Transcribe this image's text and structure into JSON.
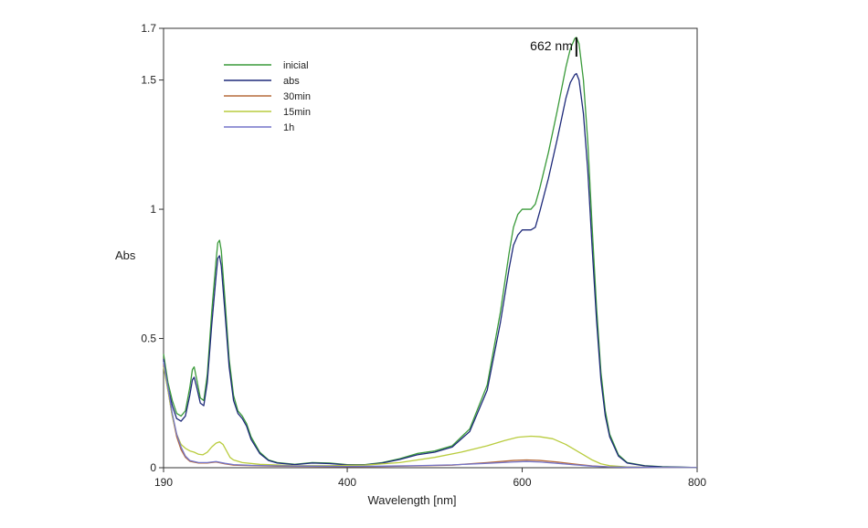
{
  "chart_data": {
    "type": "line",
    "xlabel": "Wavelength [nm]",
    "ylabel": "Abs",
    "xlim": [
      190,
      800
    ],
    "ylim": [
      0,
      1.7
    ],
    "x_ticks": [
      190,
      400,
      600,
      800
    ],
    "y_ticks": [
      0,
      0.5,
      1,
      1.5,
      1.7
    ],
    "x_tick_labels": [
      "190",
      "400",
      "600",
      "800"
    ],
    "y_tick_labels": [
      "0",
      "0.5",
      "1",
      "1.5",
      "1.7"
    ],
    "grid": false,
    "legend_placement": "top-left",
    "annotation": {
      "text": "662 nm",
      "x": 662,
      "y": 1.66
    },
    "series": [
      {
        "name": "inicial",
        "color": "#3a9a3a",
        "points": [
          [
            190,
            0.44
          ],
          [
            195,
            0.33
          ],
          [
            200,
            0.26
          ],
          [
            205,
            0.21
          ],
          [
            210,
            0.2
          ],
          [
            215,
            0.22
          ],
          [
            220,
            0.31
          ],
          [
            223,
            0.38
          ],
          [
            225,
            0.39
          ],
          [
            228,
            0.34
          ],
          [
            232,
            0.27
          ],
          [
            236,
            0.26
          ],
          [
            240,
            0.36
          ],
          [
            245,
            0.6
          ],
          [
            250,
            0.8
          ],
          [
            252,
            0.87
          ],
          [
            254,
            0.88
          ],
          [
            256,
            0.84
          ],
          [
            260,
            0.66
          ],
          [
            265,
            0.42
          ],
          [
            270,
            0.28
          ],
          [
            275,
            0.22
          ],
          [
            280,
            0.2
          ],
          [
            285,
            0.17
          ],
          [
            290,
            0.12
          ],
          [
            300,
            0.06
          ],
          [
            310,
            0.03
          ],
          [
            320,
            0.02
          ],
          [
            340,
            0.013
          ],
          [
            360,
            0.02
          ],
          [
            380,
            0.018
          ],
          [
            400,
            0.012
          ],
          [
            420,
            0.012
          ],
          [
            440,
            0.02
          ],
          [
            460,
            0.035
          ],
          [
            480,
            0.055
          ],
          [
            500,
            0.065
          ],
          [
            520,
            0.085
          ],
          [
            540,
            0.15
          ],
          [
            560,
            0.32
          ],
          [
            575,
            0.6
          ],
          [
            585,
            0.83
          ],
          [
            590,
            0.93
          ],
          [
            595,
            0.98
          ],
          [
            600,
            1.0
          ],
          [
            605,
            1.0
          ],
          [
            610,
            1.0
          ],
          [
            615,
            1.02
          ],
          [
            620,
            1.08
          ],
          [
            630,
            1.22
          ],
          [
            640,
            1.38
          ],
          [
            650,
            1.55
          ],
          [
            655,
            1.62
          ],
          [
            660,
            1.66
          ],
          [
            662,
            1.665
          ],
          [
            665,
            1.64
          ],
          [
            670,
            1.5
          ],
          [
            675,
            1.26
          ],
          [
            680,
            0.93
          ],
          [
            685,
            0.62
          ],
          [
            690,
            0.37
          ],
          [
            695,
            0.22
          ],
          [
            700,
            0.13
          ],
          [
            710,
            0.05
          ],
          [
            720,
            0.02
          ],
          [
            740,
            0.008
          ],
          [
            760,
            0.004
          ],
          [
            780,
            0.002
          ],
          [
            800,
            0.001
          ]
        ]
      },
      {
        "name": "abs",
        "color": "#1e2a7a",
        "points": [
          [
            190,
            0.42
          ],
          [
            195,
            0.31
          ],
          [
            200,
            0.24
          ],
          [
            205,
            0.19
          ],
          [
            210,
            0.18
          ],
          [
            215,
            0.2
          ],
          [
            220,
            0.28
          ],
          [
            223,
            0.34
          ],
          [
            225,
            0.35
          ],
          [
            228,
            0.31
          ],
          [
            232,
            0.25
          ],
          [
            236,
            0.24
          ],
          [
            240,
            0.33
          ],
          [
            245,
            0.55
          ],
          [
            250,
            0.74
          ],
          [
            252,
            0.81
          ],
          [
            254,
            0.82
          ],
          [
            256,
            0.78
          ],
          [
            260,
            0.61
          ],
          [
            265,
            0.39
          ],
          [
            270,
            0.26
          ],
          [
            275,
            0.21
          ],
          [
            280,
            0.19
          ],
          [
            285,
            0.16
          ],
          [
            290,
            0.11
          ],
          [
            300,
            0.055
          ],
          [
            310,
            0.028
          ],
          [
            320,
            0.018
          ],
          [
            340,
            0.012
          ],
          [
            360,
            0.018
          ],
          [
            380,
            0.016
          ],
          [
            400,
            0.011
          ],
          [
            420,
            0.011
          ],
          [
            440,
            0.018
          ],
          [
            460,
            0.032
          ],
          [
            480,
            0.05
          ],
          [
            500,
            0.06
          ],
          [
            520,
            0.08
          ],
          [
            540,
            0.14
          ],
          [
            560,
            0.3
          ],
          [
            575,
            0.56
          ],
          [
            585,
            0.77
          ],
          [
            590,
            0.86
          ],
          [
            595,
            0.9
          ],
          [
            600,
            0.92
          ],
          [
            605,
            0.92
          ],
          [
            610,
            0.92
          ],
          [
            615,
            0.93
          ],
          [
            620,
            0.99
          ],
          [
            630,
            1.12
          ],
          [
            640,
            1.27
          ],
          [
            650,
            1.43
          ],
          [
            655,
            1.49
          ],
          [
            660,
            1.52
          ],
          [
            662,
            1.525
          ],
          [
            665,
            1.5
          ],
          [
            670,
            1.37
          ],
          [
            675,
            1.15
          ],
          [
            680,
            0.85
          ],
          [
            685,
            0.57
          ],
          [
            690,
            0.34
          ],
          [
            695,
            0.2
          ],
          [
            700,
            0.12
          ],
          [
            710,
            0.045
          ],
          [
            720,
            0.018
          ],
          [
            740,
            0.007
          ],
          [
            760,
            0.003
          ],
          [
            780,
            0.002
          ],
          [
            800,
            0.001
          ]
        ]
      },
      {
        "name": "30min",
        "color": "#b56a3a",
        "points": [
          [
            190,
            0.4
          ],
          [
            195,
            0.3
          ],
          [
            200,
            0.2
          ],
          [
            205,
            0.12
          ],
          [
            210,
            0.07
          ],
          [
            215,
            0.04
          ],
          [
            220,
            0.025
          ],
          [
            230,
            0.018
          ],
          [
            240,
            0.018
          ],
          [
            250,
            0.022
          ],
          [
            260,
            0.015
          ],
          [
            270,
            0.01
          ],
          [
            290,
            0.008
          ],
          [
            320,
            0.006
          ],
          [
            360,
            0.005
          ],
          [
            400,
            0.004
          ],
          [
            440,
            0.005
          ],
          [
            480,
            0.007
          ],
          [
            520,
            0.01
          ],
          [
            560,
            0.02
          ],
          [
            590,
            0.028
          ],
          [
            605,
            0.03
          ],
          [
            620,
            0.028
          ],
          [
            640,
            0.022
          ],
          [
            660,
            0.014
          ],
          [
            680,
            0.007
          ],
          [
            700,
            0.003
          ],
          [
            720,
            0.002
          ],
          [
            760,
            0.001
          ],
          [
            800,
            0.001
          ]
        ]
      },
      {
        "name": "15min",
        "color": "#b9cc3e",
        "points": [
          [
            190,
            0.39
          ],
          [
            195,
            0.3
          ],
          [
            200,
            0.2
          ],
          [
            205,
            0.13
          ],
          [
            210,
            0.09
          ],
          [
            215,
            0.075
          ],
          [
            220,
            0.065
          ],
          [
            225,
            0.06
          ],
          [
            230,
            0.052
          ],
          [
            235,
            0.05
          ],
          [
            240,
            0.06
          ],
          [
            245,
            0.08
          ],
          [
            250,
            0.095
          ],
          [
            254,
            0.1
          ],
          [
            258,
            0.09
          ],
          [
            262,
            0.065
          ],
          [
            266,
            0.04
          ],
          [
            270,
            0.03
          ],
          [
            280,
            0.02
          ],
          [
            300,
            0.013
          ],
          [
            340,
            0.008
          ],
          [
            380,
            0.008
          ],
          [
            420,
            0.01
          ],
          [
            460,
            0.02
          ],
          [
            500,
            0.04
          ],
          [
            530,
            0.06
          ],
          [
            560,
            0.085
          ],
          [
            580,
            0.105
          ],
          [
            595,
            0.118
          ],
          [
            610,
            0.122
          ],
          [
            620,
            0.12
          ],
          [
            635,
            0.112
          ],
          [
            650,
            0.09
          ],
          [
            660,
            0.07
          ],
          [
            670,
            0.05
          ],
          [
            680,
            0.03
          ],
          [
            690,
            0.015
          ],
          [
            700,
            0.008
          ],
          [
            720,
            0.003
          ],
          [
            760,
            0.001
          ],
          [
            800,
            0.001
          ]
        ]
      },
      {
        "name": "1h",
        "color": "#7474c8",
        "points": [
          [
            190,
            0.41
          ],
          [
            195,
            0.31
          ],
          [
            200,
            0.21
          ],
          [
            205,
            0.13
          ],
          [
            210,
            0.08
          ],
          [
            215,
            0.045
          ],
          [
            220,
            0.028
          ],
          [
            230,
            0.02
          ],
          [
            240,
            0.02
          ],
          [
            250,
            0.024
          ],
          [
            260,
            0.017
          ],
          [
            270,
            0.012
          ],
          [
            290,
            0.009
          ],
          [
            320,
            0.007
          ],
          [
            360,
            0.006
          ],
          [
            400,
            0.005
          ],
          [
            440,
            0.006
          ],
          [
            480,
            0.008
          ],
          [
            520,
            0.011
          ],
          [
            560,
            0.017
          ],
          [
            590,
            0.022
          ],
          [
            605,
            0.024
          ],
          [
            620,
            0.022
          ],
          [
            640,
            0.017
          ],
          [
            660,
            0.011
          ],
          [
            680,
            0.006
          ],
          [
            700,
            0.003
          ],
          [
            720,
            0.002
          ],
          [
            760,
            0.001
          ],
          [
            800,
            0.001
          ]
        ]
      }
    ]
  }
}
